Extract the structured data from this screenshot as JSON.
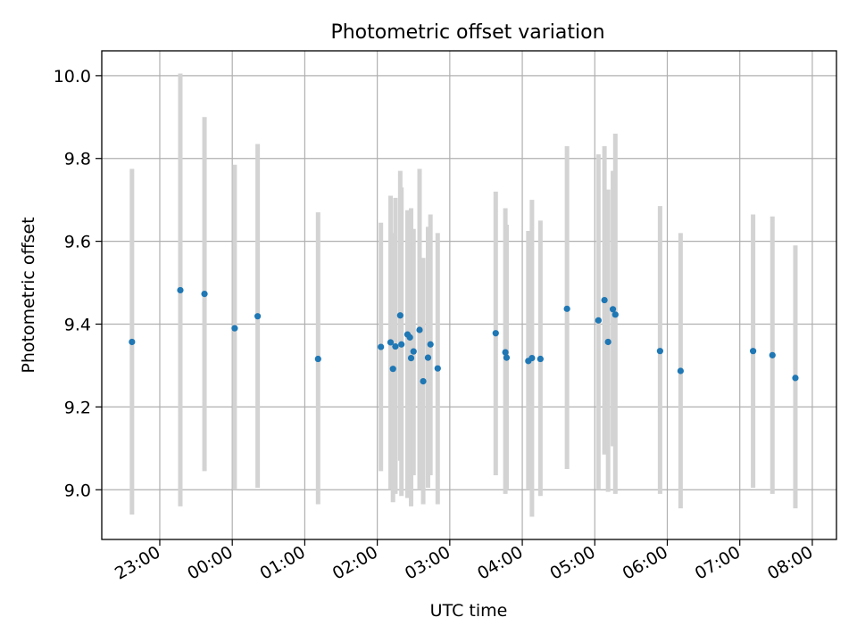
{
  "chart_data": {
    "type": "scatter",
    "title": "Photometric offset variation",
    "xlabel": "UTC time",
    "ylabel": "Photometric offset",
    "x_type": "time",
    "xlim": [
      "22:12",
      "08:20"
    ],
    "ylim": [
      8.88,
      10.06
    ],
    "grid": true,
    "x_ticks": [
      "23:00",
      "00:00",
      "01:00",
      "02:00",
      "03:00",
      "04:00",
      "05:00",
      "06:00",
      "07:00",
      "08:00"
    ],
    "y_ticks": [
      "9.0",
      "9.2",
      "9.4",
      "9.6",
      "9.8",
      "10.0"
    ],
    "colors": {
      "points": "#1f77b4",
      "errorbars": "#d3d3d3",
      "grid": "#b0b0b0"
    },
    "points": [
      {
        "x": "22:37",
        "y": 9.357,
        "ylo": 8.94,
        "yhi": 9.775
      },
      {
        "x": "23:17",
        "y": 9.482,
        "ylo": 8.96,
        "yhi": 10.005
      },
      {
        "x": "23:37",
        "y": 9.473,
        "ylo": 9.045,
        "yhi": 9.9
      },
      {
        "x": "00:02",
        "y": 9.39,
        "ylo": 9.0,
        "yhi": 9.785
      },
      {
        "x": "00:21",
        "y": 9.419,
        "ylo": 9.005,
        "yhi": 9.835
      },
      {
        "x": "01:11",
        "y": 9.316,
        "ylo": 8.965,
        "yhi": 9.67
      },
      {
        "x": "02:03",
        "y": 9.345,
        "ylo": 9.045,
        "yhi": 9.645
      },
      {
        "x": "02:11",
        "y": 9.356,
        "ylo": 9.0,
        "yhi": 9.71
      },
      {
        "x": "02:13",
        "y": 9.292,
        "ylo": 8.97,
        "yhi": 9.62
      },
      {
        "x": "02:15",
        "y": 9.346,
        "ylo": 8.99,
        "yhi": 9.705
      },
      {
        "x": "02:19",
        "y": 9.421,
        "ylo": 9.07,
        "yhi": 9.77
      },
      {
        "x": "02:20",
        "y": 9.351,
        "ylo": 8.985,
        "yhi": 9.73
      },
      {
        "x": "02:25",
        "y": 9.375,
        "ylo": 8.98,
        "yhi": 9.675
      },
      {
        "x": "02:27",
        "y": 9.368,
        "ylo": 9.035,
        "yhi": 9.655
      },
      {
        "x": "02:28",
        "y": 9.318,
        "ylo": 8.96,
        "yhi": 9.68
      },
      {
        "x": "02:30",
        "y": 9.334,
        "ylo": 9.035,
        "yhi": 9.63
      },
      {
        "x": "02:35",
        "y": 9.386,
        "ylo": 9.0,
        "yhi": 9.775
      },
      {
        "x": "02:38",
        "y": 9.262,
        "ylo": 8.965,
        "yhi": 9.56
      },
      {
        "x": "02:42",
        "y": 9.319,
        "ylo": 9.005,
        "yhi": 9.635
      },
      {
        "x": "02:44",
        "y": 9.351,
        "ylo": 9.035,
        "yhi": 9.665
      },
      {
        "x": "02:50",
        "y": 9.293,
        "ylo": 8.965,
        "yhi": 9.62
      },
      {
        "x": "03:38",
        "y": 9.378,
        "ylo": 9.035,
        "yhi": 9.72
      },
      {
        "x": "03:46",
        "y": 9.332,
        "ylo": 8.99,
        "yhi": 9.68
      },
      {
        "x": "03:47",
        "y": 9.319,
        "ylo": 9.0,
        "yhi": 9.64
      },
      {
        "x": "04:05",
        "y": 9.311,
        "ylo": 9.0,
        "yhi": 9.625
      },
      {
        "x": "04:08",
        "y": 9.318,
        "ylo": 8.935,
        "yhi": 9.7
      },
      {
        "x": "04:15",
        "y": 9.316,
        "ylo": 8.985,
        "yhi": 9.65
      },
      {
        "x": "04:37",
        "y": 9.437,
        "ylo": 9.05,
        "yhi": 9.83
      },
      {
        "x": "05:03",
        "y": 9.409,
        "ylo": 9.0,
        "yhi": 9.81
      },
      {
        "x": "05:08",
        "y": 9.458,
        "ylo": 9.085,
        "yhi": 9.83
      },
      {
        "x": "05:11",
        "y": 9.357,
        "ylo": 8.995,
        "yhi": 9.725
      },
      {
        "x": "05:15",
        "y": 9.436,
        "ylo": 9.105,
        "yhi": 9.77
      },
      {
        "x": "05:17",
        "y": 9.423,
        "ylo": 8.99,
        "yhi": 9.86
      },
      {
        "x": "05:54",
        "y": 9.335,
        "ylo": 8.99,
        "yhi": 9.685
      },
      {
        "x": "06:11",
        "y": 9.287,
        "ylo": 8.955,
        "yhi": 9.62
      },
      {
        "x": "07:11",
        "y": 9.335,
        "ylo": 9.005,
        "yhi": 9.665
      },
      {
        "x": "07:27",
        "y": 9.325,
        "ylo": 8.99,
        "yhi": 9.66
      },
      {
        "x": "07:46",
        "y": 9.27,
        "ylo": 8.955,
        "yhi": 9.59
      }
    ]
  }
}
